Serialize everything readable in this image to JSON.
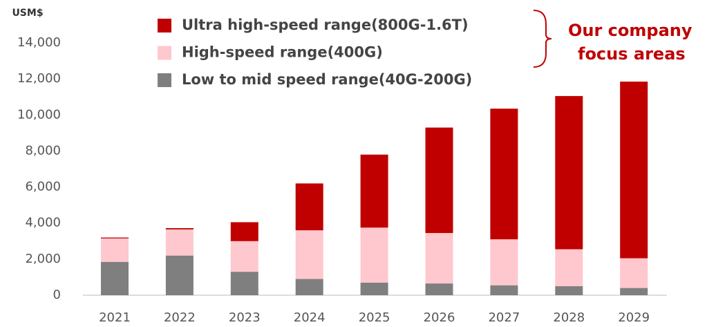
{
  "chart_data": {
    "type": "stacked_bar",
    "y_label": "USM$",
    "categories": [
      "2021",
      "2022",
      "2023",
      "2024",
      "2025",
      "2026",
      "2027",
      "2028",
      "2029"
    ],
    "series": [
      {
        "name": "Low to mid speed range(40G-200G)",
        "color": "#7f7f7f",
        "values": [
          1850,
          2200,
          1300,
          900,
          700,
          650,
          550,
          500,
          400
        ]
      },
      {
        "name": "High-speed range(400G)",
        "color": "#ffc7ce",
        "values": [
          1300,
          1450,
          1700,
          2700,
          3050,
          2800,
          2550,
          2050,
          1650
        ]
      },
      {
        "name": "Ultra high-speed range(800G-1.6T)",
        "color": "#c00000",
        "values": [
          50,
          70,
          1050,
          2600,
          4050,
          5850,
          7250,
          8500,
          9800
        ]
      }
    ],
    "annotation": [
      "Our company",
      "focus areas"
    ],
    "ylim": [
      0,
      14000
    ],
    "yticks": [
      0,
      {
        "value": 2000,
        "label": "2,000"
      },
      {
        "value": 4000,
        "label": "4,000"
      },
      {
        "value": 6000,
        "label": "6,000"
      },
      {
        "value": 8000,
        "label": "8,000"
      },
      {
        "value": 10000,
        "label": "10,000"
      },
      {
        "value": 12000,
        "label": "12,000"
      },
      {
        "value": 14000,
        "label": "14,000"
      }
    ]
  }
}
